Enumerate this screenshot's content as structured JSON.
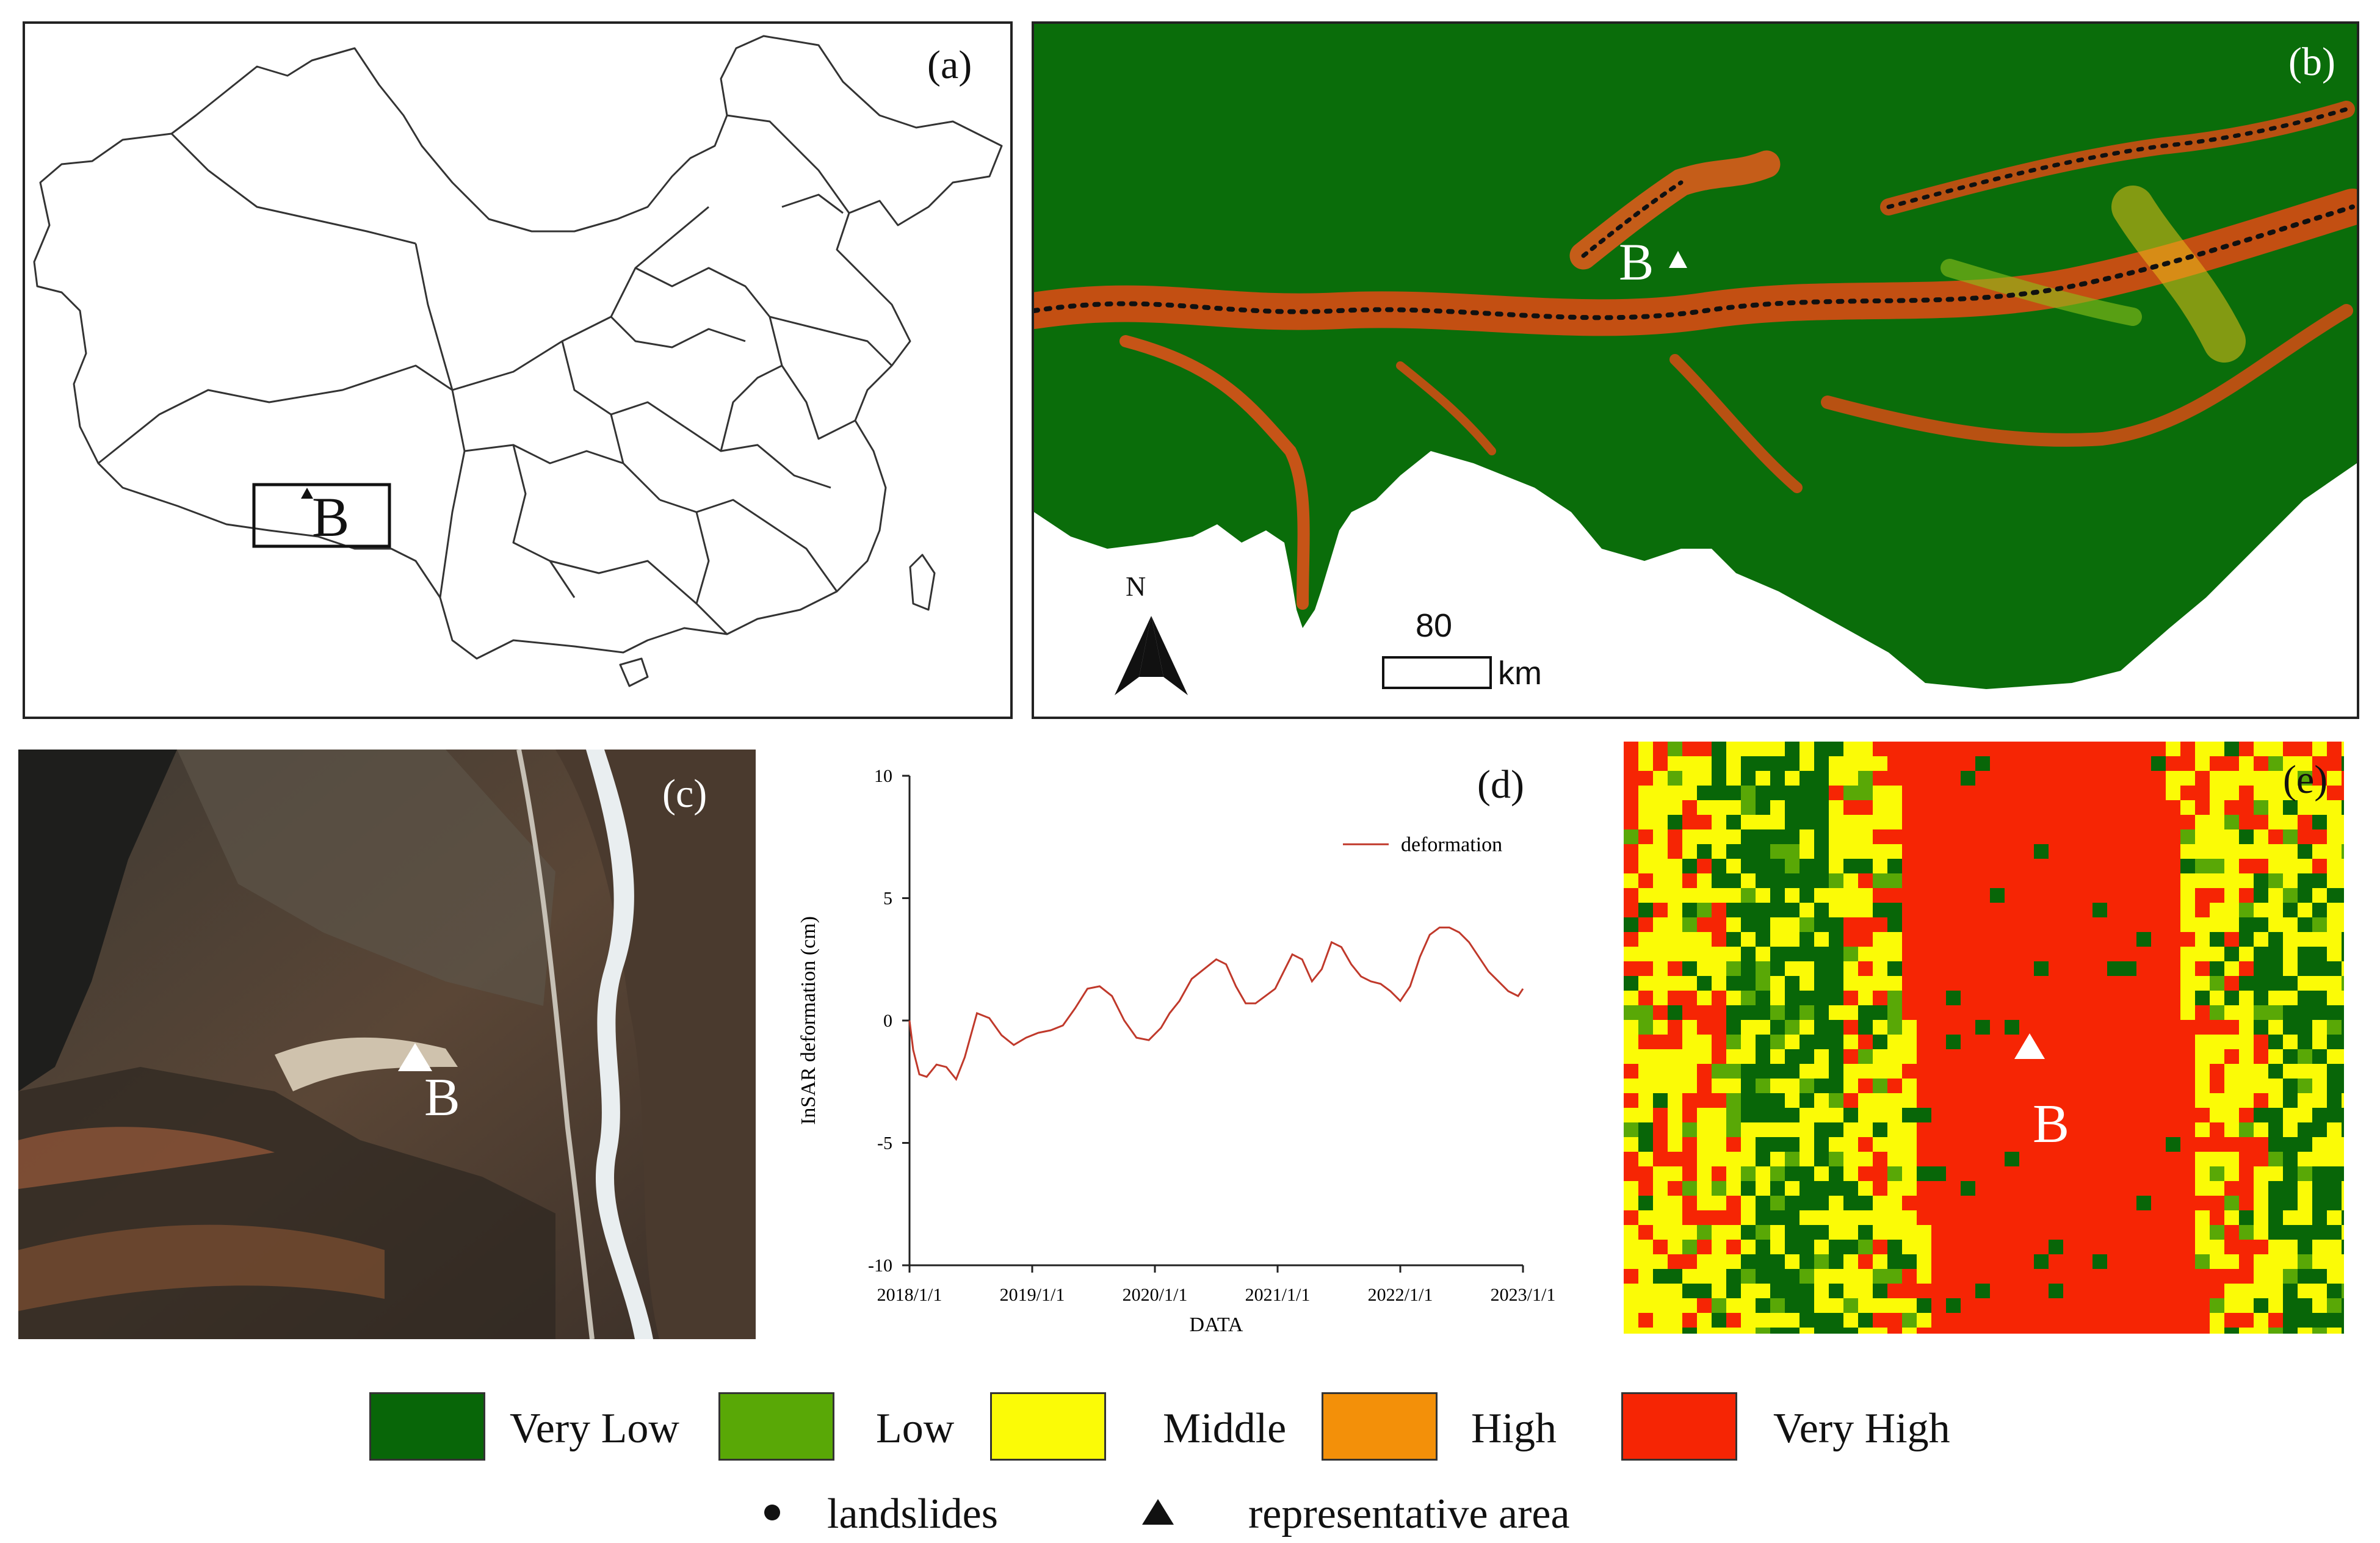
{
  "panels": {
    "a": {
      "label": "(a)",
      "marker_label": "B"
    },
    "b": {
      "label": "(b)",
      "marker_label": "B",
      "north": "N",
      "scale_value": "80",
      "scale_unit": "km"
    },
    "c": {
      "label": "(c)",
      "marker_label": "B"
    },
    "d": {
      "label": "(d)"
    },
    "e": {
      "label": "(e)",
      "marker_label": "B"
    }
  },
  "chart_data": {
    "type": "line",
    "title": "",
    "xlabel": "DATA",
    "ylabel": "InSAR deformation (cm)",
    "ylim": [
      -10,
      10
    ],
    "yticks": [
      10,
      5,
      0,
      -5,
      -10
    ],
    "xlim": [
      2018.0,
      2023.0
    ],
    "xtick_labels": [
      "2018/1/1",
      "2019/1/1",
      "2020/1/1",
      "2021/1/1",
      "2022/1/1",
      "2023/1/1"
    ],
    "legend_position": "top-right",
    "series": [
      {
        "name": "deformation",
        "color": "#c0392b",
        "x": [
          2018.0,
          2018.03,
          2018.08,
          2018.14,
          2018.22,
          2018.3,
          2018.38,
          2018.45,
          2018.55,
          2018.65,
          2018.75,
          2018.85,
          2018.95,
          2019.05,
          2019.15,
          2019.25,
          2019.35,
          2019.45,
          2019.55,
          2019.65,
          2019.75,
          2019.85,
          2019.95,
          2020.05,
          2020.12,
          2020.2,
          2020.3,
          2020.4,
          2020.5,
          2020.58,
          2020.66,
          2020.74,
          2020.82,
          2020.9,
          2020.98,
          2021.05,
          2021.12,
          2021.2,
          2021.28,
          2021.36,
          2021.44,
          2021.52,
          2021.6,
          2021.68,
          2021.76,
          2021.84,
          2021.92,
          2022.0,
          2022.08,
          2022.16,
          2022.24,
          2022.32,
          2022.4,
          2022.48,
          2022.56,
          2022.64,
          2022.72,
          2022.8,
          2022.88,
          2022.96,
          2023.0
        ],
        "y": [
          0.0,
          -1.2,
          -2.2,
          -2.3,
          -1.8,
          -1.9,
          -2.4,
          -1.5,
          0.3,
          0.1,
          -0.6,
          -1.0,
          -0.7,
          -0.5,
          -0.4,
          -0.2,
          0.5,
          1.3,
          1.4,
          1.0,
          0.0,
          -0.7,
          -0.8,
          -0.3,
          0.3,
          0.8,
          1.7,
          2.1,
          2.5,
          2.3,
          1.4,
          0.7,
          0.7,
          1.0,
          1.3,
          2.0,
          2.7,
          2.5,
          1.6,
          2.1,
          3.2,
          3.0,
          2.3,
          1.8,
          1.6,
          1.5,
          1.2,
          0.8,
          1.4,
          2.6,
          3.5,
          3.8,
          3.8,
          3.6,
          3.2,
          2.6,
          2.0,
          1.6,
          1.2,
          1.0,
          1.3
        ]
      }
    ]
  },
  "legend": {
    "classes": [
      {
        "label": "Very Low",
        "color": "#086608"
      },
      {
        "label": "Low",
        "color": "#59a806"
      },
      {
        "label": "Middle",
        "color": "#fbfb06"
      },
      {
        "label": "High",
        "color": "#f39009"
      },
      {
        "label": "Very High",
        "color": "#f62504"
      }
    ],
    "symbols": [
      {
        "label": "landslides",
        "icon": "dot-icon"
      },
      {
        "label": "representative area",
        "icon": "triangle-icon"
      }
    ]
  }
}
